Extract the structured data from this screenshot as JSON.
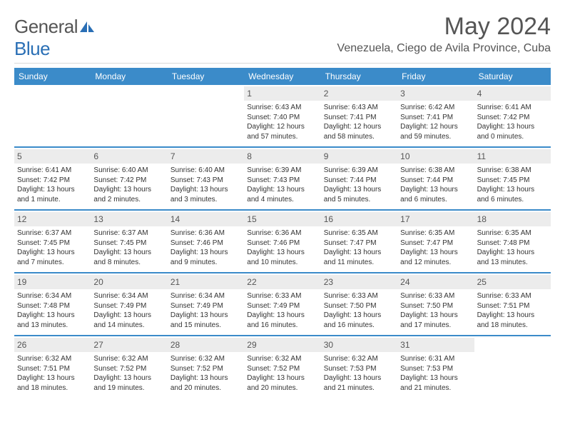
{
  "brand": {
    "part1": "General",
    "part2": "Blue"
  },
  "header": {
    "month_title": "May 2024",
    "location": "Venezuela, Ciego de Avila Province, Cuba"
  },
  "colors": {
    "header_bar": "#3b8bc9",
    "row_border": "#3b8bc9",
    "daynum_bg": "#ececec",
    "text": "#333333",
    "muted": "#555555"
  },
  "weekdays": [
    "Sunday",
    "Monday",
    "Tuesday",
    "Wednesday",
    "Thursday",
    "Friday",
    "Saturday"
  ],
  "weeks": [
    [
      {
        "empty": true
      },
      {
        "empty": true
      },
      {
        "empty": true
      },
      {
        "day": "1",
        "sunrise": "6:43 AM",
        "sunset": "7:40 PM",
        "daylight": "12 hours and 57 minutes."
      },
      {
        "day": "2",
        "sunrise": "6:43 AM",
        "sunset": "7:41 PM",
        "daylight": "12 hours and 58 minutes."
      },
      {
        "day": "3",
        "sunrise": "6:42 AM",
        "sunset": "7:41 PM",
        "daylight": "12 hours and 59 minutes."
      },
      {
        "day": "4",
        "sunrise": "6:41 AM",
        "sunset": "7:42 PM",
        "daylight": "13 hours and 0 minutes."
      }
    ],
    [
      {
        "day": "5",
        "sunrise": "6:41 AM",
        "sunset": "7:42 PM",
        "daylight": "13 hours and 1 minute."
      },
      {
        "day": "6",
        "sunrise": "6:40 AM",
        "sunset": "7:42 PM",
        "daylight": "13 hours and 2 minutes."
      },
      {
        "day": "7",
        "sunrise": "6:40 AM",
        "sunset": "7:43 PM",
        "daylight": "13 hours and 3 minutes."
      },
      {
        "day": "8",
        "sunrise": "6:39 AM",
        "sunset": "7:43 PM",
        "daylight": "13 hours and 4 minutes."
      },
      {
        "day": "9",
        "sunrise": "6:39 AM",
        "sunset": "7:44 PM",
        "daylight": "13 hours and 5 minutes."
      },
      {
        "day": "10",
        "sunrise": "6:38 AM",
        "sunset": "7:44 PM",
        "daylight": "13 hours and 6 minutes."
      },
      {
        "day": "11",
        "sunrise": "6:38 AM",
        "sunset": "7:45 PM",
        "daylight": "13 hours and 6 minutes."
      }
    ],
    [
      {
        "day": "12",
        "sunrise": "6:37 AM",
        "sunset": "7:45 PM",
        "daylight": "13 hours and 7 minutes."
      },
      {
        "day": "13",
        "sunrise": "6:37 AM",
        "sunset": "7:45 PM",
        "daylight": "13 hours and 8 minutes."
      },
      {
        "day": "14",
        "sunrise": "6:36 AM",
        "sunset": "7:46 PM",
        "daylight": "13 hours and 9 minutes."
      },
      {
        "day": "15",
        "sunrise": "6:36 AM",
        "sunset": "7:46 PM",
        "daylight": "13 hours and 10 minutes."
      },
      {
        "day": "16",
        "sunrise": "6:35 AM",
        "sunset": "7:47 PM",
        "daylight": "13 hours and 11 minutes."
      },
      {
        "day": "17",
        "sunrise": "6:35 AM",
        "sunset": "7:47 PM",
        "daylight": "13 hours and 12 minutes."
      },
      {
        "day": "18",
        "sunrise": "6:35 AM",
        "sunset": "7:48 PM",
        "daylight": "13 hours and 13 minutes."
      }
    ],
    [
      {
        "day": "19",
        "sunrise": "6:34 AM",
        "sunset": "7:48 PM",
        "daylight": "13 hours and 13 minutes."
      },
      {
        "day": "20",
        "sunrise": "6:34 AM",
        "sunset": "7:49 PM",
        "daylight": "13 hours and 14 minutes."
      },
      {
        "day": "21",
        "sunrise": "6:34 AM",
        "sunset": "7:49 PM",
        "daylight": "13 hours and 15 minutes."
      },
      {
        "day": "22",
        "sunrise": "6:33 AM",
        "sunset": "7:49 PM",
        "daylight": "13 hours and 16 minutes."
      },
      {
        "day": "23",
        "sunrise": "6:33 AM",
        "sunset": "7:50 PM",
        "daylight": "13 hours and 16 minutes."
      },
      {
        "day": "24",
        "sunrise": "6:33 AM",
        "sunset": "7:50 PM",
        "daylight": "13 hours and 17 minutes."
      },
      {
        "day": "25",
        "sunrise": "6:33 AM",
        "sunset": "7:51 PM",
        "daylight": "13 hours and 18 minutes."
      }
    ],
    [
      {
        "day": "26",
        "sunrise": "6:32 AM",
        "sunset": "7:51 PM",
        "daylight": "13 hours and 18 minutes."
      },
      {
        "day": "27",
        "sunrise": "6:32 AM",
        "sunset": "7:52 PM",
        "daylight": "13 hours and 19 minutes."
      },
      {
        "day": "28",
        "sunrise": "6:32 AM",
        "sunset": "7:52 PM",
        "daylight": "13 hours and 20 minutes."
      },
      {
        "day": "29",
        "sunrise": "6:32 AM",
        "sunset": "7:52 PM",
        "daylight": "13 hours and 20 minutes."
      },
      {
        "day": "30",
        "sunrise": "6:32 AM",
        "sunset": "7:53 PM",
        "daylight": "13 hours and 21 minutes."
      },
      {
        "day": "31",
        "sunrise": "6:31 AM",
        "sunset": "7:53 PM",
        "daylight": "13 hours and 21 minutes."
      },
      {
        "empty": true
      }
    ]
  ],
  "labels": {
    "sunrise_prefix": "Sunrise: ",
    "sunset_prefix": "Sunset: ",
    "daylight_prefix": "Daylight: "
  }
}
